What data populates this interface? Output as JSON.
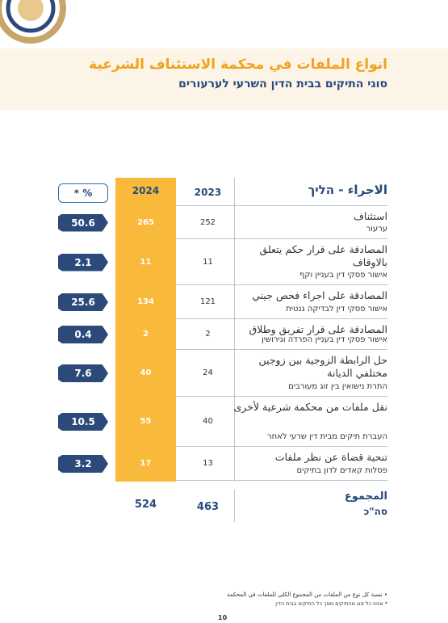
{
  "header": {
    "title": "انواع الملفات في محكمة الاستئناف الشرعية",
    "subtitle": "סוגי התיקים בבית הדין השרעי לערעורים"
  },
  "table": {
    "columns": [
      "الاجراء - הליך",
      "2023",
      "2024",
      "* %"
    ],
    "rows": [
      [
        "استئناف",
        "ערעור",
        "252",
        "265",
        "50.6"
      ],
      [
        "المصادقة على قرار حكم يتعلق بالاوقاف",
        "אישור פסקי דין בעניין וקף",
        "11",
        "11",
        "2.1"
      ],
      [
        "المصادقة على اجراء فحص جيني",
        "אישור פסקי דין לבדיקה גנטית",
        "121",
        "134",
        "25.6"
      ],
      [
        "المصادقة على قرار تفريق وطلاق",
        "אישור פסקי דין בעניין הפרדה וגירושין",
        "2",
        "2",
        "0.4"
      ],
      [
        "حل الرابطة الزوجية بين زوجين مختلفي الديانة",
        "התרת נישואין בין זוג מעורבים",
        "24",
        "40",
        "7.6"
      ],
      [
        "نقل ملفات من محكمة شرعية لأخرى",
        "העברת תיקים מבית דין שרעי לאחר",
        "40",
        "55",
        "10.5"
      ],
      [
        "تنحية قضاة عن نظر ملفات",
        "פסלות קאדים לדון בתיקים",
        "13",
        "17",
        "3.2"
      ]
    ],
    "total": [
      "المجموع",
      "סה\"כ",
      "463",
      "524"
    ]
  },
  "footnotes": [
    "نسبة كل نوع من الملفات من المجموع الكلي للملفات في المحكمة",
    "אחוז כל סוג מהתיקים מסך כל התיקים בבית הדין"
  ],
  "page_number": "10"
}
